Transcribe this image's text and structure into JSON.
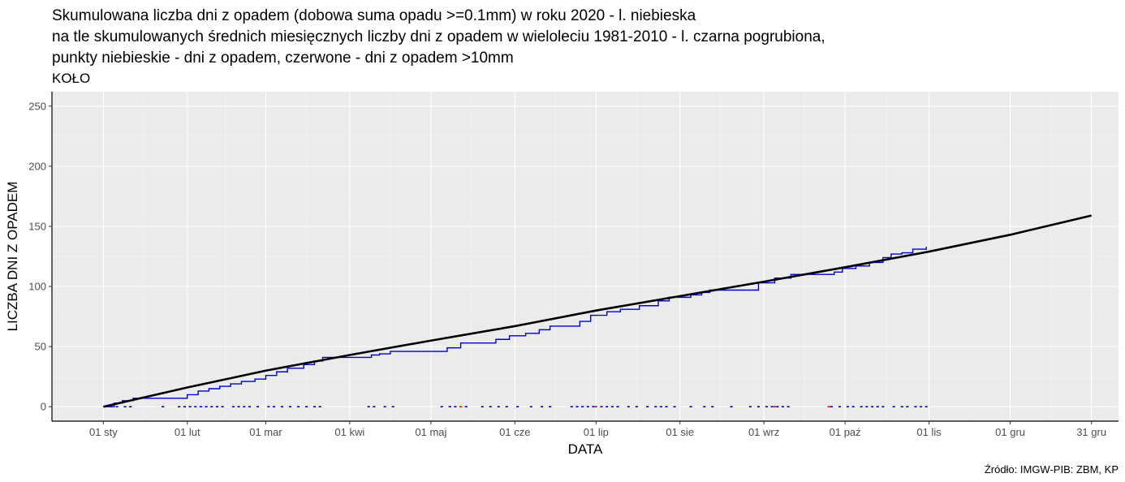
{
  "chart_data": {
    "type": "line",
    "title_lines": [
      "Skumulowana liczba dni z opadem (dobowa suma opadu >=0.1mm) w roku 2020 - l. niebieska",
      "na tle skumulowanych średnich miesięcznych liczby dni z opadem w wieloleciu 1981-2010 - l. czarna pogrubiona,",
      "punkty niebieskie - dni z opadem, czerwone - dni z opadem >10mm"
    ],
    "subtitle": "KOŁO",
    "xlabel": "DATA",
    "ylabel": "LICZBA DNI Z OPADEM",
    "caption": "Źródło: IMGW-PIB: ZBM, KP",
    "ylim": [
      -12,
      262
    ],
    "y_ticks": [
      0,
      50,
      100,
      150,
      200,
      250
    ],
    "xlim": [
      "2019-12-13",
      "2021-01-10"
    ],
    "x_ticks": [
      {
        "date": "2020-01-01",
        "label": "01 sty"
      },
      {
        "date": "2020-02-01",
        "label": "01 lut"
      },
      {
        "date": "2020-03-01",
        "label": "01 mar"
      },
      {
        "date": "2020-04-01",
        "label": "01 kwi"
      },
      {
        "date": "2020-05-01",
        "label": "01 maj"
      },
      {
        "date": "2020-06-01",
        "label": "01 cze"
      },
      {
        "date": "2020-07-01",
        "label": "01 lip"
      },
      {
        "date": "2020-08-01",
        "label": "01 sie"
      },
      {
        "date": "2020-09-01",
        "label": "01 wrz"
      },
      {
        "date": "2020-10-01",
        "label": "01 paź"
      },
      {
        "date": "2020-11-01",
        "label": "01 lis"
      },
      {
        "date": "2020-12-01",
        "label": "01 gru"
      },
      {
        "date": "2020-12-31",
        "label": "31 gru"
      }
    ],
    "grid": true,
    "series": [
      {
        "role": "climatology",
        "color": "#000000",
        "points": [
          [
            "2020-01-01",
            0
          ],
          [
            "2020-02-01",
            16
          ],
          [
            "2020-03-01",
            30
          ],
          [
            "2020-04-01",
            43
          ],
          [
            "2020-05-01",
            55
          ],
          [
            "2020-06-01",
            67
          ],
          [
            "2020-07-01",
            80
          ],
          [
            "2020-08-01",
            92
          ],
          [
            "2020-09-01",
            104
          ],
          [
            "2020-10-01",
            116
          ],
          [
            "2020-11-01",
            129
          ],
          [
            "2020-12-01",
            143
          ],
          [
            "2020-12-31",
            159
          ]
        ]
      },
      {
        "role": "cumulative_2020",
        "color": "#0000cc",
        "points": [
          [
            "2020-01-01",
            0
          ],
          [
            "2020-01-05",
            3
          ],
          [
            "2020-01-08",
            5
          ],
          [
            "2020-01-12",
            7
          ],
          [
            "2020-01-27",
            7
          ],
          [
            "2020-02-01",
            10
          ],
          [
            "2020-02-05",
            13
          ],
          [
            "2020-02-09",
            15
          ],
          [
            "2020-02-13",
            17
          ],
          [
            "2020-02-17",
            19
          ],
          [
            "2020-02-21",
            21
          ],
          [
            "2020-02-26",
            23
          ],
          [
            "2020-03-01",
            26
          ],
          [
            "2020-03-05",
            29
          ],
          [
            "2020-03-09",
            32
          ],
          [
            "2020-03-15",
            35
          ],
          [
            "2020-03-19",
            38
          ],
          [
            "2020-03-22",
            41
          ],
          [
            "2020-04-05",
            41
          ],
          [
            "2020-04-09",
            43
          ],
          [
            "2020-04-12",
            44
          ],
          [
            "2020-04-13",
            44
          ],
          [
            "2020-04-16",
            46
          ],
          [
            "2020-05-03",
            46
          ],
          [
            "2020-05-07",
            49
          ],
          [
            "2020-05-12",
            53
          ],
          [
            "2020-05-20",
            53
          ],
          [
            "2020-05-25",
            56
          ],
          [
            "2020-05-30",
            59
          ],
          [
            "2020-06-05",
            61
          ],
          [
            "2020-06-10",
            64
          ],
          [
            "2020-06-14",
            67
          ],
          [
            "2020-06-20",
            67
          ],
          [
            "2020-06-25",
            71
          ],
          [
            "2020-06-29",
            76
          ],
          [
            "2020-07-05",
            79
          ],
          [
            "2020-07-10",
            81
          ],
          [
            "2020-07-17",
            84
          ],
          [
            "2020-07-24",
            88
          ],
          [
            "2020-07-28",
            91
          ],
          [
            "2020-08-05",
            93
          ],
          [
            "2020-08-09",
            95
          ],
          [
            "2020-08-12",
            97
          ],
          [
            "2020-08-25",
            97
          ],
          [
            "2020-08-30",
            103
          ],
          [
            "2020-09-05",
            107
          ],
          [
            "2020-09-11",
            110
          ],
          [
            "2020-09-22",
            110
          ],
          [
            "2020-09-27",
            112
          ],
          [
            "2020-09-30",
            115
          ],
          [
            "2020-10-05",
            117
          ],
          [
            "2020-10-10",
            120
          ],
          [
            "2020-10-15",
            124
          ],
          [
            "2020-10-18",
            127
          ],
          [
            "2020-10-22",
            128
          ],
          [
            "2020-10-26",
            131
          ],
          [
            "2020-10-31",
            133
          ]
        ]
      }
    ],
    "rain_days": {
      "color": "#0000cc",
      "dates": [
        "2020-01-02",
        "2020-01-04",
        "2020-01-06",
        "2020-01-09",
        "2020-01-11",
        "2020-01-23",
        "2020-01-29",
        "2020-01-31",
        "2020-02-02",
        "2020-02-04",
        "2020-02-06",
        "2020-02-08",
        "2020-02-10",
        "2020-02-12",
        "2020-02-14",
        "2020-02-18",
        "2020-02-20",
        "2020-02-22",
        "2020-02-24",
        "2020-02-27",
        "2020-03-02",
        "2020-03-04",
        "2020-03-07",
        "2020-03-10",
        "2020-03-13",
        "2020-03-16",
        "2020-03-19",
        "2020-03-21",
        "2020-04-08",
        "2020-04-10",
        "2020-04-14",
        "2020-04-17",
        "2020-05-05",
        "2020-05-08",
        "2020-05-10",
        "2020-05-14",
        "2020-05-20",
        "2020-05-23",
        "2020-05-26",
        "2020-05-29",
        "2020-06-02",
        "2020-06-07",
        "2020-06-11",
        "2020-06-14",
        "2020-06-22",
        "2020-06-24",
        "2020-06-26",
        "2020-06-28",
        "2020-06-30",
        "2020-07-03",
        "2020-07-05",
        "2020-07-07",
        "2020-07-09",
        "2020-07-13",
        "2020-07-16",
        "2020-07-20",
        "2020-07-23",
        "2020-07-25",
        "2020-07-27",
        "2020-07-30",
        "2020-08-05",
        "2020-08-10",
        "2020-08-13",
        "2020-08-20",
        "2020-08-27",
        "2020-08-30",
        "2020-09-02",
        "2020-09-04",
        "2020-09-06",
        "2020-09-08",
        "2020-09-10",
        "2020-09-26",
        "2020-09-29",
        "2020-10-02",
        "2020-10-04",
        "2020-10-07",
        "2020-10-09",
        "2020-10-11",
        "2020-10-13",
        "2020-10-15",
        "2020-10-19",
        "2020-10-22",
        "2020-10-24",
        "2020-10-27",
        "2020-10-29",
        "2020-10-31"
      ]
    },
    "heavy_rain_days": {
      "color": "#ff0000",
      "dates": [
        "2020-05-12",
        "2020-07-01",
        "2020-09-05",
        "2020-09-25"
      ]
    }
  }
}
